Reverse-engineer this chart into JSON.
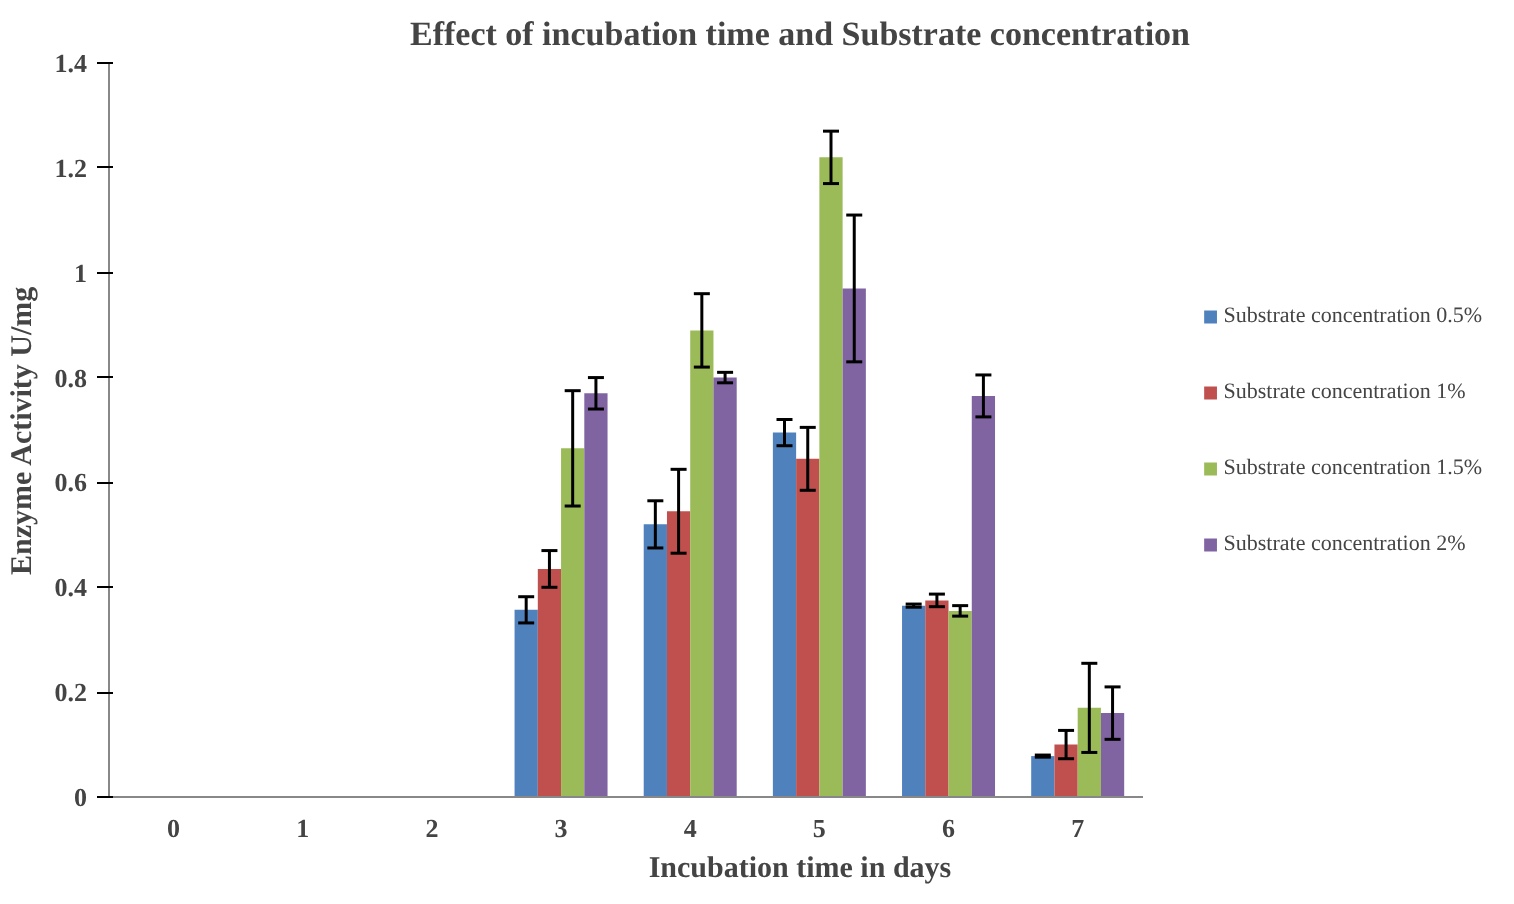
{
  "chart_data": {
    "type": "bar",
    "title": "Effect of incubation time and Substrate concentration",
    "xlabel": "Incubation time in days",
    "ylabel": "Enzyme Activity U/mg",
    "categories": [
      "0",
      "1",
      "2",
      "3",
      "4",
      "5",
      "6",
      "7"
    ],
    "series": [
      {
        "name": "Substrate concentration 0.5%",
        "color": "#4f81bd",
        "values": [
          0,
          0,
          0,
          0.357,
          0.52,
          0.695,
          0.365,
          0.078
        ],
        "errors": [
          null,
          null,
          null,
          0.025,
          0.045,
          0.025,
          0.003,
          0.002
        ]
      },
      {
        "name": "Substrate concentration 1%",
        "color": "#c0504d",
        "values": [
          0,
          0,
          0,
          0.435,
          0.545,
          0.645,
          0.375,
          0.1
        ],
        "errors": [
          null,
          null,
          null,
          0.035,
          0.08,
          0.06,
          0.012,
          0.027
        ]
      },
      {
        "name": "Substrate concentration 1.5%",
        "color": "#9bbb59",
        "values": [
          0,
          0,
          0,
          0.665,
          0.89,
          1.22,
          0.355,
          0.17
        ],
        "errors": [
          null,
          null,
          null,
          0.11,
          0.07,
          0.05,
          0.01,
          0.085
        ]
      },
      {
        "name": "Substrate concentration 2%",
        "color": "#8064a2",
        "values": [
          0,
          0,
          0,
          0.77,
          0.8,
          0.97,
          0.765,
          0.16
        ],
        "errors": [
          null,
          null,
          null,
          0.03,
          0.01,
          0.14,
          0.04,
          0.05
        ]
      }
    ],
    "ylim": [
      0,
      1.4
    ],
    "yticks": [
      0,
      0.2,
      0.4,
      0.6,
      0.8,
      1,
      1.2,
      1.4
    ],
    "grid": false,
    "legend": "right"
  }
}
